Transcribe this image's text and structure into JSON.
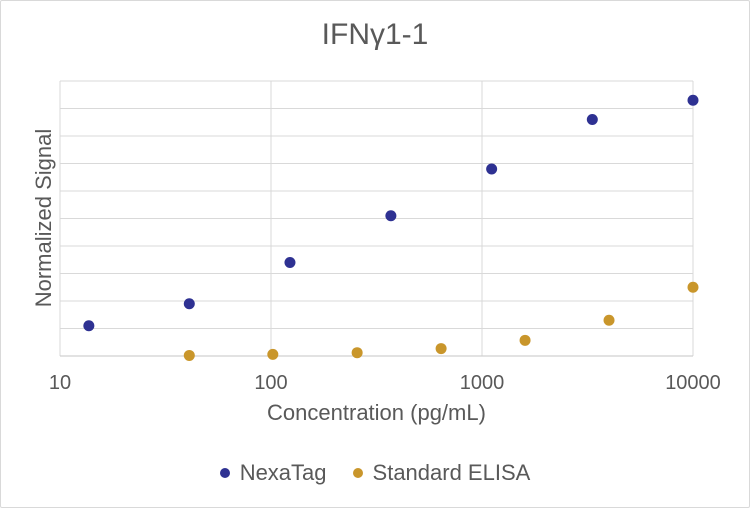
{
  "chart_data": {
    "type": "scatter",
    "title": "IFNγ1-1",
    "xlabel": "Concentration (pg/mL)",
    "ylabel": "Normalized Signal",
    "x_scale": "log",
    "xlim": [
      10,
      10000
    ],
    "x_tick_labels": [
      "10",
      "100",
      "1000",
      "10000"
    ],
    "x_tick_values": [
      10,
      100,
      1000,
      10000
    ],
    "ylim": [
      0,
      10
    ],
    "y_gridlines": 10,
    "y_tick_labels_shown": false,
    "grid": true,
    "legend_position": "bottom",
    "series": [
      {
        "name": "NexaTag",
        "color": "#2e3192",
        "x": [
          13.7,
          41,
          123,
          370,
          1111,
          3333,
          10000
        ],
        "y": [
          1.1,
          1.9,
          3.4,
          5.1,
          6.8,
          8.6,
          9.3
        ]
      },
      {
        "name": "Standard ELISA",
        "color": "#c9962b",
        "x": [
          41,
          102,
          256,
          640,
          1600,
          4000,
          10000
        ],
        "y": [
          0.02,
          0.06,
          0.12,
          0.27,
          0.57,
          1.3,
          2.5
        ]
      }
    ]
  }
}
